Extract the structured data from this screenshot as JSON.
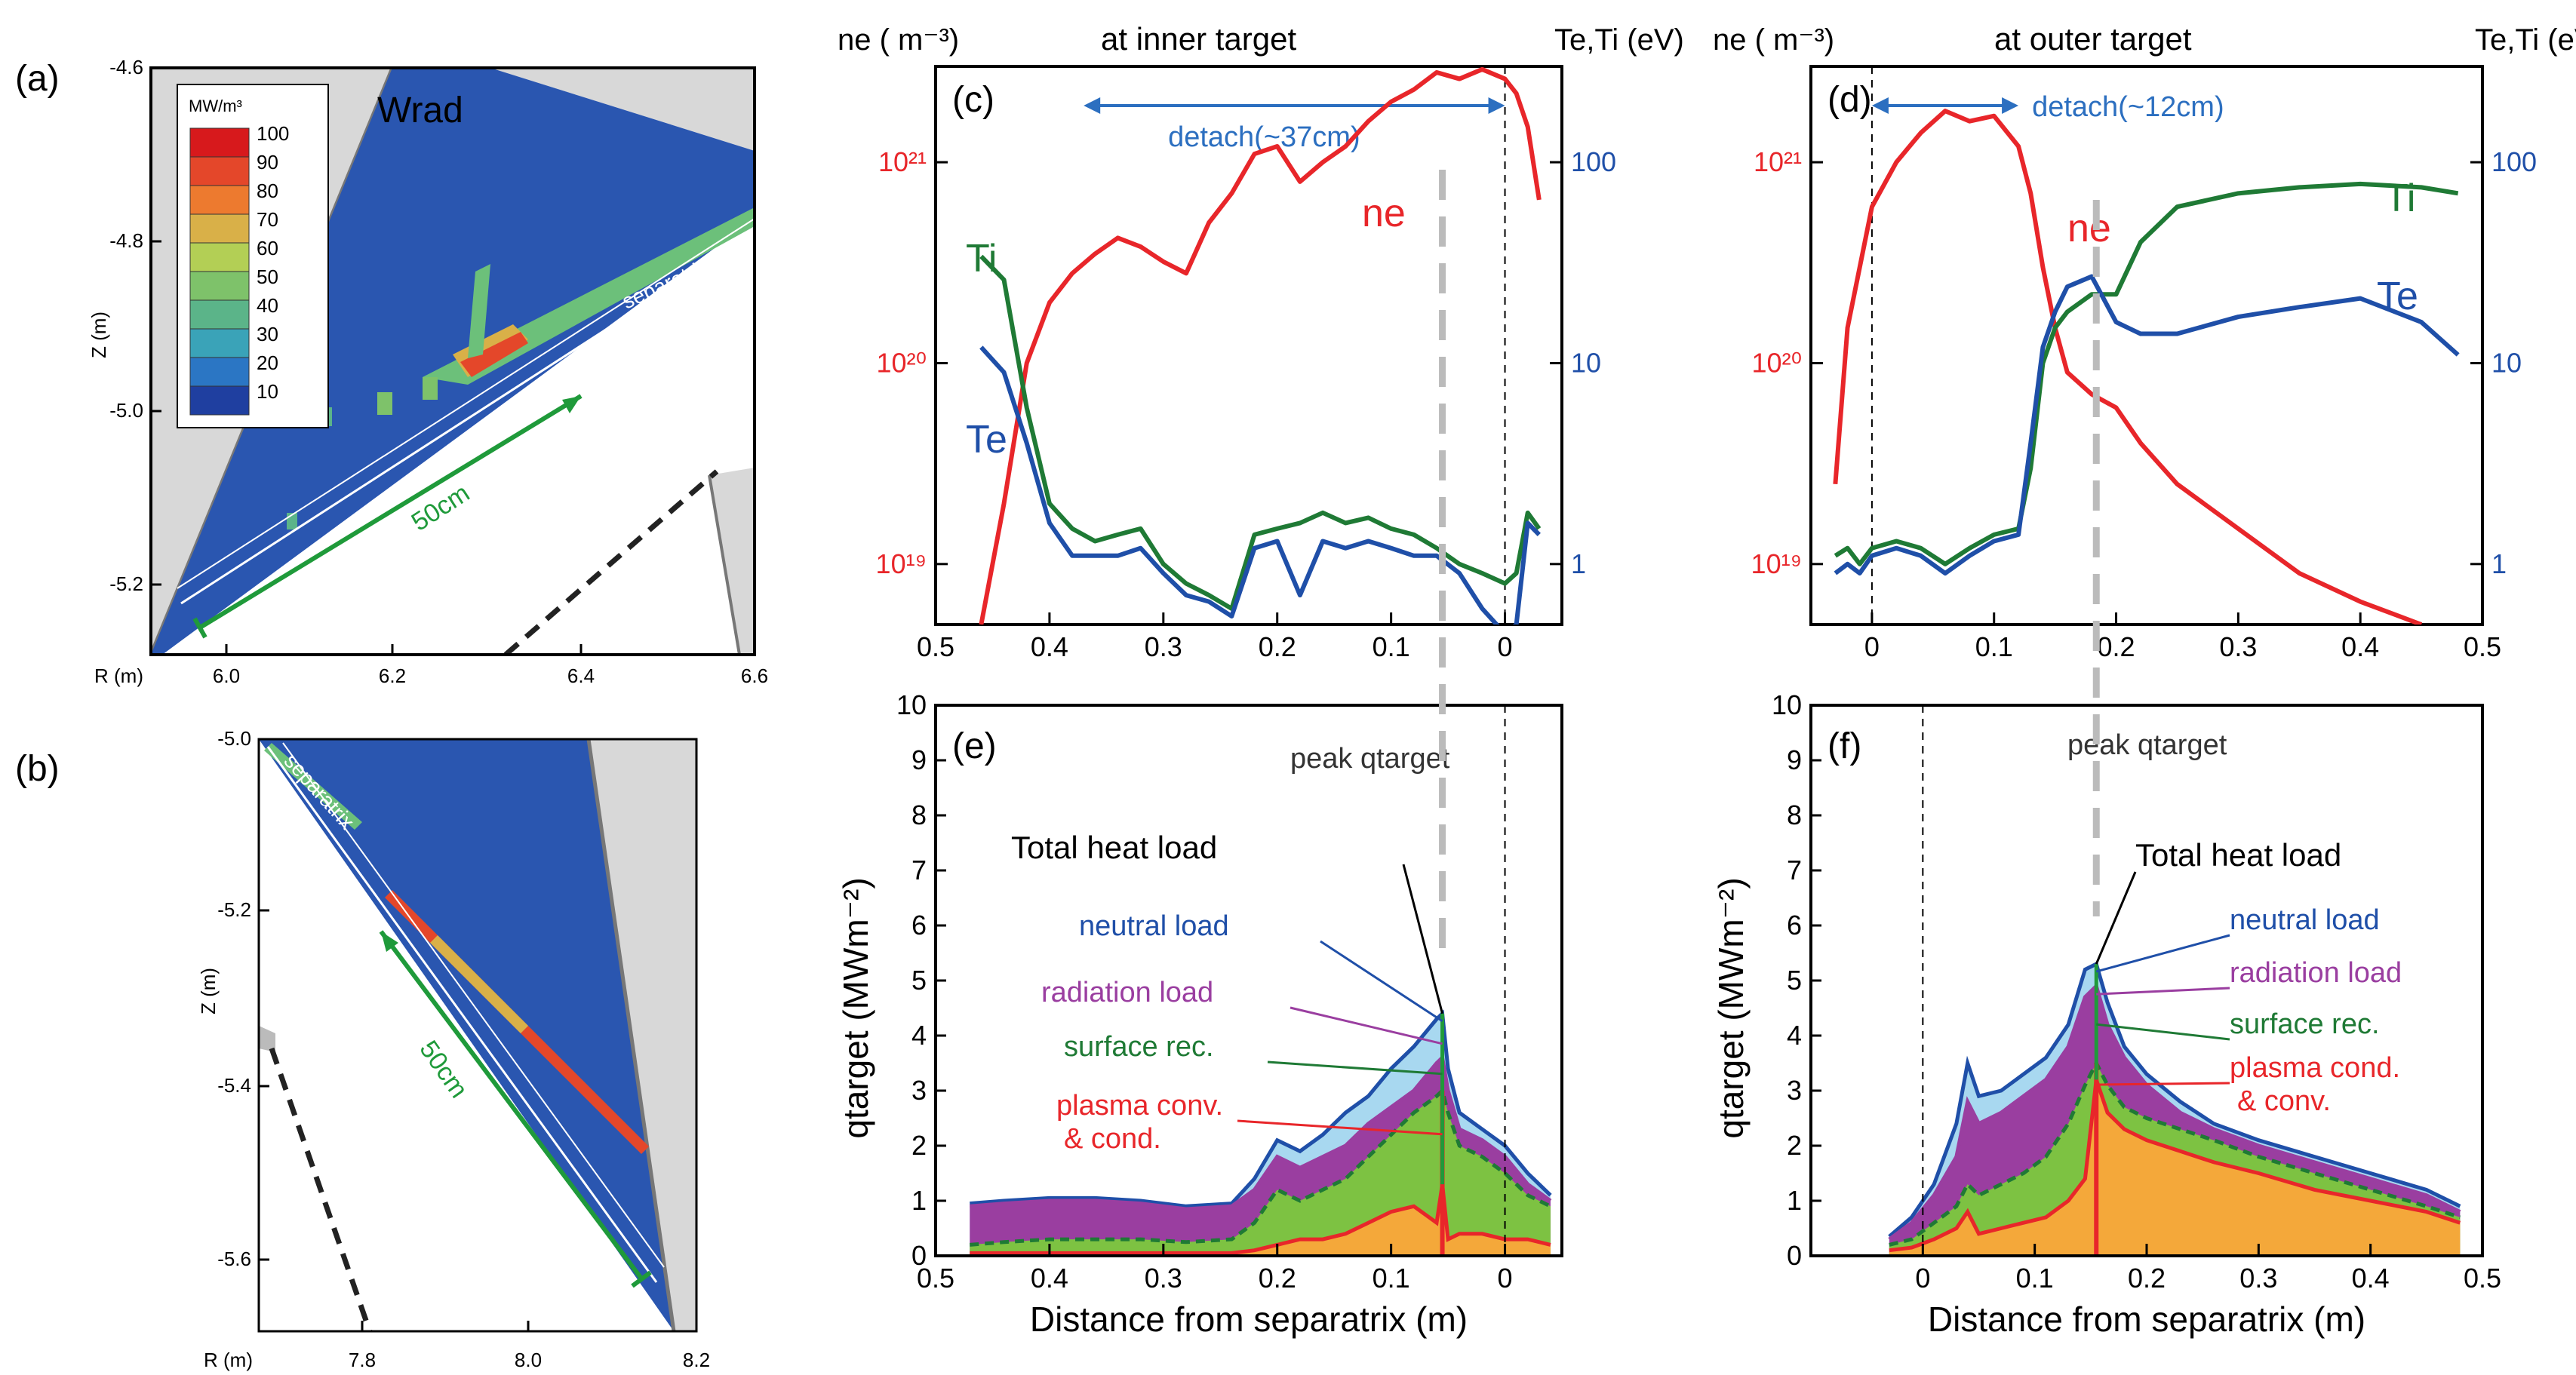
{
  "colors": {
    "ne": "#e8262a",
    "ti": "#1f7a35",
    "te": "#1f4fa8",
    "detach": "#2c6fc0",
    "mesh": "#2a56b0",
    "wall": "#d8d8d8",
    "neutral_fill": "#a8d8f0",
    "radiation_fill": "#9a3ea0",
    "surface_fill": "#7dc242",
    "plasma_fill": "#f4a83a",
    "peak_dash": "#bbbbbb",
    "green_line": "#1f9a3a"
  },
  "panel_a": {
    "label": "(a)",
    "title": "Wrad",
    "colorbar_unit": "MW/m³",
    "colorbar_levels": [
      "100",
      "90",
      "80",
      "70",
      "60",
      "50",
      "40",
      "30",
      "20",
      "10"
    ],
    "colorbar_colors": [
      "#d7191c",
      "#e4472a",
      "#ed7a2f",
      "#d9b048",
      "#b3cf55",
      "#7ec26a",
      "#5bb489",
      "#3aa3b8",
      "#2b76c4",
      "#1f3fa0"
    ],
    "ylabel": "Z (m)",
    "xlabel": "R (m)",
    "yticks": [
      "-4.6",
      "-4.8",
      "-5.0",
      "-5.2"
    ],
    "xticks": [
      "6.0",
      "6.2",
      "6.4",
      "6.6"
    ],
    "separatrix": "separatrix",
    "length_label": "50cm"
  },
  "panel_b": {
    "label": "(b)",
    "ylabel": "Z (m)",
    "xlabel": "R (m)",
    "yticks": [
      "-5.0",
      "-5.2",
      "-5.4",
      "-5.6"
    ],
    "xticks": [
      "7.8",
      "8.0",
      "8.2"
    ],
    "separatrix": "separatrix",
    "length_label": "50cm"
  },
  "chart_data": [
    {
      "id": "c",
      "type": "line",
      "label": "(c)",
      "title": "at inner target",
      "ylabel_left": "ne ( m⁻³)",
      "ylabel_right": "Te,Ti (eV)",
      "ylim_left": [
        5e+18,
        3e+21
      ],
      "ylim_right": [
        0.5,
        300
      ],
      "yticks_left": [
        "10²¹",
        "10²⁰",
        "10¹⁹"
      ],
      "yticks_right": [
        "100",
        "10",
        "1"
      ],
      "xlim": [
        0.5,
        -0.05
      ],
      "xticks": [
        "0.5",
        "0.4",
        "0.3",
        "0.2",
        "0.1",
        "0"
      ],
      "detach_label": "detach(~37cm)",
      "detach_range": [
        0.37,
        0
      ],
      "series": [
        {
          "name": "ne",
          "axis": "left",
          "x": [
            0.46,
            0.44,
            0.42,
            0.4,
            0.38,
            0.36,
            0.34,
            0.32,
            0.3,
            0.28,
            0.26,
            0.24,
            0.22,
            0.2,
            0.18,
            0.16,
            0.14,
            0.12,
            0.1,
            0.08,
            0.06,
            0.04,
            0.02,
            0.0,
            -0.01,
            -0.02,
            -0.03
          ],
          "values": [
            5e+18,
            2e+19,
            1e+20,
            2e+20,
            2.8e+20,
            3.5e+20,
            4.2e+20,
            3.8e+20,
            3.2e+20,
            2.8e+20,
            5e+20,
            7e+20,
            1.1e+21,
            1.2e+21,
            8e+20,
            1e+21,
            1.2e+21,
            1.6e+21,
            2e+21,
            2.3e+21,
            2.8e+21,
            2.6e+21,
            2.9e+21,
            2.6e+21,
            2.2e+21,
            1.5e+21,
            6.5e+20
          ]
        },
        {
          "name": "Ti",
          "axis": "right",
          "x": [
            0.46,
            0.44,
            0.42,
            0.4,
            0.38,
            0.36,
            0.34,
            0.32,
            0.3,
            0.28,
            0.26,
            0.24,
            0.22,
            0.2,
            0.18,
            0.16,
            0.14,
            0.12,
            0.1,
            0.08,
            0.06,
            0.04,
            0.02,
            0.0,
            -0.01,
            -0.02,
            -0.03
          ],
          "values": [
            34,
            26,
            6,
            2,
            1.5,
            1.3,
            1.4,
            1.5,
            1.0,
            0.8,
            0.7,
            0.6,
            1.4,
            1.5,
            1.6,
            1.8,
            1.6,
            1.7,
            1.5,
            1.4,
            1.2,
            1.0,
            0.9,
            0.8,
            0.9,
            1.8,
            1.5
          ]
        },
        {
          "name": "Te",
          "axis": "right",
          "x": [
            0.46,
            0.44,
            0.42,
            0.4,
            0.38,
            0.36,
            0.34,
            0.32,
            0.3,
            0.28,
            0.26,
            0.24,
            0.22,
            0.2,
            0.18,
            0.16,
            0.14,
            0.12,
            0.1,
            0.08,
            0.06,
            0.04,
            0.02,
            0.0,
            -0.01,
            -0.02,
            -0.03
          ],
          "values": [
            12,
            9,
            4,
            1.6,
            1.1,
            1.1,
            1.1,
            1.2,
            0.9,
            0.7,
            0.65,
            0.55,
            1.2,
            1.3,
            0.7,
            1.3,
            1.2,
            1.3,
            1.2,
            1.1,
            1.1,
            0.9,
            0.6,
            0.45,
            0.5,
            1.6,
            1.4
          ]
        }
      ],
      "annotations": {
        "ne": "ne",
        "Ti": "Ti",
        "Te": "Te"
      },
      "legend": [
        "ne",
        "Ti",
        "Te"
      ]
    },
    {
      "id": "d",
      "type": "line",
      "label": "(d)",
      "title": "at outer target",
      "ylabel_left": "ne ( m⁻³)",
      "ylabel_right": "Te,Ti (eV)",
      "ylim_left": [
        5e+18,
        3e+21
      ],
      "ylim_right": [
        0.5,
        300
      ],
      "yticks_left": [
        "10²¹",
        "10²⁰",
        "10¹⁹"
      ],
      "yticks_right": [
        "100",
        "10",
        "1"
      ],
      "xlim": [
        -0.05,
        0.5
      ],
      "xticks": [
        "0",
        "0.1",
        "0.2",
        "0.3",
        "0.4",
        "0.5"
      ],
      "detach_label": "detach(~12cm)",
      "detach_range": [
        0,
        0.12
      ],
      "series": [
        {
          "name": "ne",
          "axis": "left",
          "x": [
            -0.03,
            -0.02,
            -0.01,
            0.0,
            0.02,
            0.04,
            0.06,
            0.08,
            0.1,
            0.12,
            0.13,
            0.14,
            0.15,
            0.16,
            0.18,
            0.2,
            0.22,
            0.25,
            0.3,
            0.35,
            0.4,
            0.45
          ],
          "values": [
            2.5e+19,
            1.5e+20,
            3e+20,
            6e+20,
            1e+21,
            1.4e+21,
            1.8e+21,
            1.6e+21,
            1.7e+21,
            1.2e+21,
            7e+20,
            3e+20,
            1.5e+20,
            9e+19,
            7e+19,
            6e+19,
            4e+19,
            2.5e+19,
            1.5e+19,
            9e+18,
            6.5e+18,
            5e+18
          ]
        },
        {
          "name": "Ti",
          "axis": "right",
          "x": [
            -0.03,
            -0.02,
            -0.01,
            0.0,
            0.02,
            0.04,
            0.06,
            0.08,
            0.1,
            0.12,
            0.13,
            0.14,
            0.15,
            0.16,
            0.18,
            0.2,
            0.22,
            0.25,
            0.3,
            0.35,
            0.4,
            0.45,
            0.48
          ],
          "values": [
            1.1,
            1.2,
            1.0,
            1.2,
            1.3,
            1.2,
            1.0,
            1.2,
            1.4,
            1.5,
            3,
            10,
            15,
            18,
            22,
            22,
            40,
            60,
            70,
            75,
            78,
            75,
            70
          ]
        },
        {
          "name": "Te",
          "axis": "right",
          "x": [
            -0.03,
            -0.02,
            -0.01,
            0.0,
            0.02,
            0.04,
            0.06,
            0.08,
            0.1,
            0.12,
            0.13,
            0.14,
            0.15,
            0.16,
            0.18,
            0.2,
            0.22,
            0.25,
            0.3,
            0.35,
            0.4,
            0.45,
            0.48
          ],
          "values": [
            0.9,
            1.0,
            0.9,
            1.1,
            1.2,
            1.1,
            0.9,
            1.1,
            1.3,
            1.4,
            4,
            12,
            18,
            24,
            27,
            16,
            14,
            14,
            17,
            19,
            21,
            16,
            11
          ]
        }
      ],
      "annotations": {
        "ne": "ne",
        "Ti": "Ti",
        "Te": "Te"
      },
      "legend": [
        "ne",
        "Ti",
        "Te"
      ]
    },
    {
      "id": "e",
      "type": "area",
      "label": "(e)",
      "xlabel": "Distance from separatrix (m)",
      "ylabel": "qtarget (MWm⁻²)",
      "ylim": [
        0,
        10
      ],
      "yticks": [
        "0",
        "1",
        "2",
        "3",
        "4",
        "5",
        "6",
        "7",
        "8",
        "9",
        "10"
      ],
      "xlim": [
        0.5,
        -0.05
      ],
      "xticks": [
        "0.5",
        "0.4",
        "0.3",
        "0.2",
        "0.1",
        "0"
      ],
      "peak_label": "peak qtarget",
      "peak_x": 0.055,
      "x": [
        0.47,
        0.44,
        0.4,
        0.36,
        0.32,
        0.28,
        0.24,
        0.22,
        0.2,
        0.18,
        0.16,
        0.14,
        0.12,
        0.1,
        0.08,
        0.06,
        0.055,
        0.05,
        0.04,
        0.02,
        0.0,
        -0.02,
        -0.04
      ],
      "series": [
        {
          "name": "plasma conv. & cond.",
          "values": [
            0.05,
            0.05,
            0.05,
            0.05,
            0.05,
            0.05,
            0.05,
            0.1,
            0.2,
            0.3,
            0.3,
            0.4,
            0.6,
            0.8,
            0.9,
            0.6,
            1.3,
            0.3,
            0.4,
            0.4,
            0.3,
            0.3,
            0.2
          ]
        },
        {
          "name": "surface rec.",
          "values": [
            0.2,
            0.25,
            0.3,
            0.3,
            0.3,
            0.25,
            0.3,
            0.6,
            1.2,
            1.0,
            1.2,
            1.4,
            1.8,
            2.2,
            2.6,
            2.9,
            3.0,
            2.6,
            2.0,
            1.8,
            1.5,
            1.1,
            0.9
          ]
        },
        {
          "name": "radiation load",
          "values": [
            0.9,
            0.95,
            1.0,
            1.0,
            0.95,
            0.85,
            0.9,
            1.2,
            1.8,
            1.6,
            1.8,
            2.0,
            2.4,
            2.7,
            3.0,
            3.5,
            3.6,
            3.0,
            2.3,
            2.1,
            1.8,
            1.3,
            1.0
          ]
        },
        {
          "name": "neutral load",
          "values": [
            0.95,
            1.0,
            1.05,
            1.05,
            1.0,
            0.9,
            0.95,
            1.4,
            2.1,
            1.9,
            2.2,
            2.6,
            2.9,
            3.4,
            3.8,
            4.3,
            4.4,
            3.4,
            2.6,
            2.3,
            2.0,
            1.5,
            1.1
          ]
        }
      ],
      "labels": {
        "total": "Total heat load",
        "neutral": "neutral load",
        "radiation": "radiation load",
        "surface": "surface rec.",
        "plasma": "plasma conv.",
        "plasma2": "& cond."
      },
      "legend": [
        "neutral load",
        "radiation load",
        "surface rec.",
        "plasma conv. & cond."
      ]
    },
    {
      "id": "f",
      "type": "area",
      "label": "(f)",
      "xlabel": "Distance from separatrix (m)",
      "ylabel": "qtarget (MWm⁻²)",
      "ylim": [
        0,
        10
      ],
      "yticks": [
        "0",
        "1",
        "2",
        "3",
        "4",
        "5",
        "6",
        "7",
        "8",
        "9",
        "10"
      ],
      "xlim": [
        -0.1,
        0.5
      ],
      "xticks": [
        "0",
        "0.1",
        "0.2",
        "0.3",
        "0.4",
        "0.5"
      ],
      "peak_label": "peak qtarget",
      "peak_x": 0.155,
      "x": [
        -0.03,
        -0.01,
        0.01,
        0.03,
        0.04,
        0.05,
        0.07,
        0.09,
        0.11,
        0.13,
        0.145,
        0.155,
        0.165,
        0.18,
        0.2,
        0.23,
        0.26,
        0.3,
        0.35,
        0.4,
        0.45,
        0.48
      ],
      "series": [
        {
          "name": "plasma cond. & conv.",
          "values": [
            0.1,
            0.15,
            0.3,
            0.5,
            0.8,
            0.4,
            0.5,
            0.6,
            0.7,
            1.0,
            1.4,
            3.2,
            2.6,
            2.3,
            2.1,
            1.9,
            1.7,
            1.5,
            1.2,
            1.0,
            0.8,
            0.6
          ]
        },
        {
          "name": "surface rec.",
          "values": [
            0.2,
            0.3,
            0.6,
            0.9,
            1.3,
            1.1,
            1.3,
            1.5,
            1.8,
            2.4,
            3.1,
            3.5,
            3.1,
            2.7,
            2.5,
            2.3,
            2.1,
            1.8,
            1.5,
            1.2,
            0.9,
            0.7
          ]
        },
        {
          "name": "radiation load",
          "values": [
            0.3,
            0.6,
            1.1,
            1.8,
            2.8,
            2.4,
            2.6,
            2.9,
            3.2,
            3.8,
            4.7,
            4.9,
            4.2,
            3.6,
            3.1,
            2.6,
            2.3,
            2.0,
            1.7,
            1.4,
            1.1,
            0.8
          ]
        },
        {
          "name": "neutral load",
          "values": [
            0.35,
            0.7,
            1.3,
            2.4,
            3.5,
            2.9,
            3.0,
            3.3,
            3.6,
            4.2,
            5.2,
            5.3,
            4.6,
            3.8,
            3.3,
            2.8,
            2.4,
            2.1,
            1.8,
            1.5,
            1.2,
            0.9
          ]
        }
      ],
      "labels": {
        "total": "Total heat load",
        "neutral": "neutral load",
        "radiation": "radiation load",
        "surface": "surface rec.",
        "plasma": "plasma cond.",
        "plasma2": "& conv."
      },
      "legend": [
        "neutral load",
        "radiation load",
        "surface rec.",
        "plasma cond. & conv."
      ]
    }
  ]
}
